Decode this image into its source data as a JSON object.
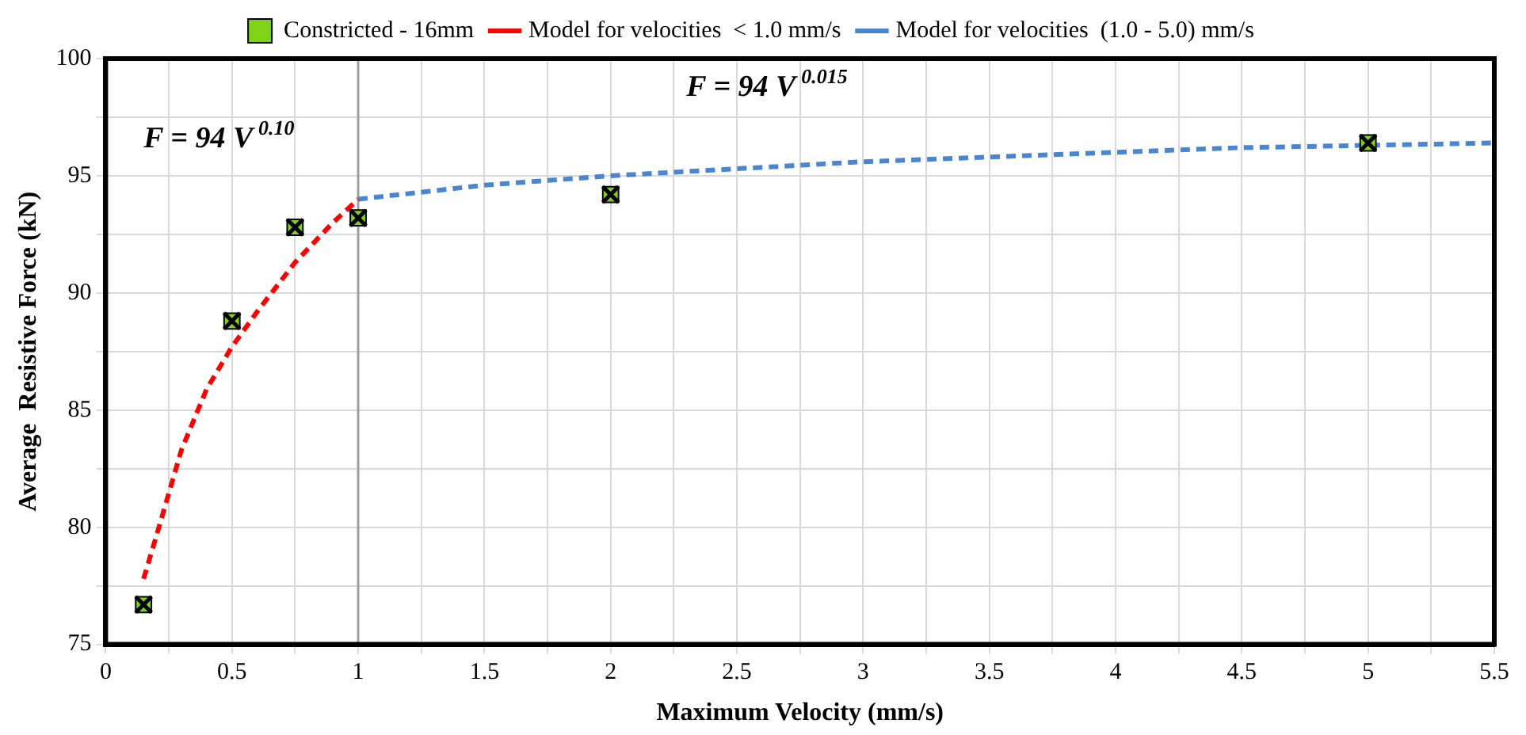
{
  "chart_data": {
    "type": "scatter",
    "xlabel": "Maximum Velocity (mm/s)",
    "ylabel": "Average  Resistive Force (kN)",
    "xlim": [
      0,
      5.5
    ],
    "ylim": [
      75,
      100
    ],
    "xticks": [
      0,
      {
        "value": 0.25,
        "label": null
      },
      0.5,
      {
        "value": 0.75,
        "label": null
      },
      1,
      {
        "value": 1.25,
        "label": null
      },
      1.5,
      {
        "value": 1.75,
        "label": null
      },
      2,
      {
        "value": 2.25,
        "label": null
      },
      2.5,
      {
        "value": 2.75,
        "label": null
      },
      3,
      {
        "value": 3.25,
        "label": null
      },
      3.5,
      {
        "value": 3.75,
        "label": null
      },
      4,
      {
        "value": 4.25,
        "label": null
      },
      4.5,
      {
        "value": 4.75,
        "label": null
      },
      5,
      {
        "value": 5.25,
        "label": null
      },
      5.5
    ],
    "yticks": [
      75,
      {
        "value": 77.5,
        "label": null
      },
      80,
      {
        "value": 82.5,
        "label": null
      },
      85,
      {
        "value": 87.5,
        "label": null
      },
      90,
      {
        "value": 92.5,
        "label": null
      },
      95,
      {
        "value": 97.5,
        "label": null
      },
      100
    ],
    "grid": true,
    "legend": "top",
    "series": [
      {
        "name": "Constricted - 16mm",
        "marker": "square",
        "color": "#7fd11a",
        "x": [
          0.15,
          0.5,
          0.75,
          1,
          2,
          5
        ],
        "values": [
          76.7,
          88.8,
          92.8,
          93.2,
          94.2,
          96.4
        ]
      },
      {
        "name": "Model for velocities  < 1.0 mm/s",
        "type": "line",
        "marker": "none",
        "line_style": "dashed",
        "color": "#ff0000",
        "x": [
          0.15,
          0.2,
          0.3,
          0.4,
          0.5,
          0.6,
          0.75,
          0.9,
          1
        ],
        "values": [
          77.8,
          79.6,
          83.3,
          85.9,
          87.7,
          89.2,
          91.3,
          93.0,
          94.0
        ]
      },
      {
        "name": "Model for velocities  (1.0 - 5.0) mm/s",
        "type": "line",
        "marker": "none",
        "line_style": "dashed",
        "color": "#4a86d0",
        "x": [
          1,
          1.5,
          2,
          2.5,
          3,
          3.5,
          4,
          4.5,
          5,
          5.5
        ],
        "values": [
          94.0,
          94.6,
          95.0,
          95.3,
          95.6,
          95.8,
          96.0,
          96.2,
          96.3,
          96.4
        ]
      }
    ],
    "ref_lines": [
      {
        "axis": "x",
        "value": 1,
        "color": "#a0a0a0"
      }
    ],
    "annotations": [
      "F = 94 V$^{0.10}$",
      "F = 94 V$^{0.015}$"
    ]
  }
}
